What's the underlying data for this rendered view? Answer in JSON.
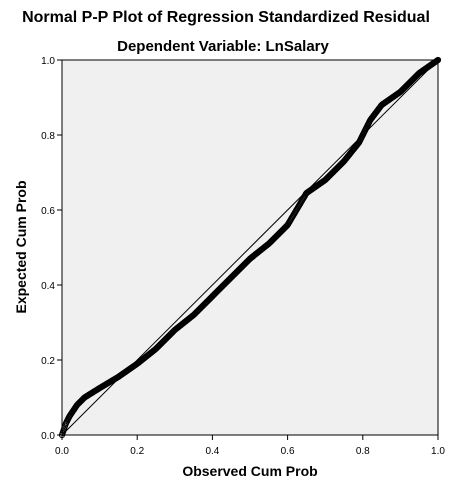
{
  "chart_data": {
    "type": "scatter",
    "title": "Normal P-P Plot of Regression Standardized Residual",
    "subtitle": "Dependent Variable: LnSalary",
    "xlabel": "Observed Cum Prob",
    "ylabel": "Expected Cum Prob",
    "xlim": [
      0,
      1
    ],
    "ylim": [
      0,
      1
    ],
    "x_ticks": [
      "0.0",
      "0.2",
      "0.4",
      "0.6",
      "0.8",
      "1.0"
    ],
    "y_ticks": [
      "0.0",
      "0.2",
      "0.4",
      "0.6",
      "0.8",
      "1.0"
    ],
    "grid": false,
    "legend": "none",
    "reference_line": {
      "from": [
        0,
        0
      ],
      "to": [
        1,
        1
      ]
    },
    "colors": {
      "plot_background": "#f0f0f0",
      "points": "#000000",
      "reference_line": "#000000"
    },
    "points_curve": [
      [
        0.0,
        0.0
      ],
      [
        0.01,
        0.03
      ],
      [
        0.02,
        0.05
      ],
      [
        0.04,
        0.08
      ],
      [
        0.06,
        0.1
      ],
      [
        0.1,
        0.125
      ],
      [
        0.15,
        0.155
      ],
      [
        0.2,
        0.19
      ],
      [
        0.25,
        0.23
      ],
      [
        0.3,
        0.28
      ],
      [
        0.35,
        0.32
      ],
      [
        0.4,
        0.37
      ],
      [
        0.45,
        0.42
      ],
      [
        0.5,
        0.47
      ],
      [
        0.55,
        0.51
      ],
      [
        0.6,
        0.56
      ],
      [
        0.65,
        0.645
      ],
      [
        0.7,
        0.68
      ],
      [
        0.75,
        0.73
      ],
      [
        0.79,
        0.78
      ],
      [
        0.82,
        0.84
      ],
      [
        0.85,
        0.88
      ],
      [
        0.9,
        0.915
      ],
      [
        0.95,
        0.965
      ],
      [
        1.0,
        1.0
      ]
    ]
  }
}
